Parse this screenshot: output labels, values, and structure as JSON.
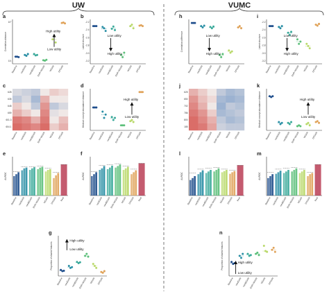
{
  "headers": {
    "left": "UW",
    "right": "VUMC"
  },
  "colors": {
    "Baseline": "#1f4e8c",
    "medGAN": "#2a8fa5",
    "medBGAN": "#3aa99a",
    "EMR-WGAN": "#5cbf7a",
    "WGAN": "#b9d96a",
    "DPGAN": "#e0a35a",
    "Real": "#b0243f"
  },
  "utility": {
    "low": "Low utility",
    "high": "High utility"
  },
  "panels": [
    {
      "id": "a",
      "label": "a",
      "type": "scatter",
      "ylabel": "Correlation distance",
      "yticks": [
        "10°",
        "10¹"
      ],
      "arrow": "up-high",
      "categories": [
        "Baseline",
        "medGAN",
        "medBGAN",
        "EMR-WGAN",
        "WGAN",
        "DPGAN"
      ],
      "points": [
        [
          0.16,
          0.16,
          0.15
        ],
        [
          0.2,
          0.18,
          0.22
        ],
        [
          0.22,
          0.19,
          0.2
        ],
        [
          0.08,
          0.07,
          0.09
        ],
        [
          0.55,
          0.62,
          0.48
        ],
        [
          0.92,
          0.93,
          0.91
        ]
      ],
      "means": [
        0.16,
        0.2,
        0.2,
        0.08,
        0.55,
        0.92
      ]
    },
    {
      "id": "b",
      "label": "b",
      "type": "scatter",
      "ylabel": "Latent structure",
      "yticks": [
        "-2.2",
        "-2.4",
        "-2.6",
        "-2.8",
        "-3.0",
        "-3.2"
      ],
      "arrow": "down-high",
      "categories": [
        "Baseline",
        "medGAN",
        "medBGAN",
        "EMR-WGAN",
        "WGAN",
        "DPGAN"
      ],
      "points": [
        [
          0.85,
          0.85,
          0.85
        ],
        [
          0.83,
          0.8,
          0.74
        ],
        [
          0.79,
          0.84,
          0.76
        ],
        [
          0.2,
          0.15,
          0.25
        ],
        [
          0.85,
          0.88,
          0.8
        ],
        [
          0.86,
          0.87,
          0.85
        ]
      ],
      "means": [
        0.85,
        0.79,
        0.8,
        0.2,
        0.84,
        0.86
      ]
    },
    {
      "id": "c",
      "label": "c",
      "type": "heatmap",
      "rows": [
        "628",
        "635",
        "648",
        "659",
        "601.3",
        "604.1"
      ],
      "cols": [
        "Baseline",
        "medGAN",
        "medBGAN",
        "EMR-WGAN",
        "WGAN",
        "DPGAN"
      ],
      "values": [
        [
          0.4,
          0.35,
          0.3,
          0.5,
          0.6,
          0.55
        ],
        [
          0.3,
          0.4,
          0.2,
          0.7,
          0.5,
          0.5
        ],
        [
          0.6,
          0.5,
          0.3,
          0.8,
          0.3,
          0.4
        ],
        [
          0.7,
          0.6,
          0.5,
          0.85,
          0.45,
          0.5
        ],
        [
          0.9,
          0.85,
          0.7,
          0.9,
          0.5,
          0.65
        ],
        [
          0.95,
          0.9,
          0.85,
          0.95,
          0.6,
          0.7
        ]
      ]
    },
    {
      "id": "d",
      "label": "d",
      "type": "scatter",
      "ylabel": "Medical concept abundance distance",
      "yticks": [],
      "arrow": "up-high",
      "categories": [
        "Baseline",
        "medGAN",
        "medBGAN",
        "EMR-WGAN",
        "WGAN",
        "DPGAN"
      ],
      "points": [
        [
          0.55,
          0.55,
          0.55
        ],
        [
          0.45,
          0.3,
          0.38
        ],
        [
          0.32,
          0.25,
          0.3
        ],
        [
          0.12,
          0.12,
          0.12
        ],
        [
          0.22,
          0.25,
          0.2
        ],
        [
          0.92,
          0.92,
          0.92
        ]
      ],
      "means": [
        0.55,
        0.38,
        0.29,
        0.12,
        0.22,
        0.92
      ]
    },
    {
      "id": "e",
      "label": "e",
      "type": "bar",
      "ylabel": "AUROC",
      "categories": [
        "Baseline",
        "medGAN",
        "medBGAN",
        "EMR-WGAN",
        "WGAN",
        "DPGAN",
        "Real"
      ],
      "values": [
        0.62,
        0.74,
        0.74,
        0.76,
        0.7,
        0.6,
        0.8
      ],
      "sub": [
        [
          0.5,
          0.55,
          0.6
        ],
        [
          0.65,
          0.7,
          0.72
        ],
        [
          0.66,
          0.7,
          0.73
        ],
        [
          0.68,
          0.72,
          0.74
        ],
        [
          0.62,
          0.66,
          0.68
        ],
        [
          0.45,
          0.52,
          0.58
        ],
        [
          0.8
        ]
      ]
    },
    {
      "id": "f",
      "label": "f",
      "type": "bar",
      "ylabel": "AUROC",
      "categories": [
        "Baseline",
        "medGAN",
        "medBGAN",
        "EMR-WGAN",
        "WGAN",
        "DPGAN",
        "Real"
      ],
      "values": [
        0.62,
        0.78,
        0.79,
        0.82,
        0.76,
        0.68,
        0.83
      ],
      "sub": [
        [
          0.5,
          0.55,
          0.6
        ],
        [
          0.66,
          0.7,
          0.76
        ],
        [
          0.68,
          0.72,
          0.77
        ],
        [
          0.72,
          0.76,
          0.8
        ],
        [
          0.66,
          0.7,
          0.74
        ],
        [
          0.55,
          0.6,
          0.65
        ],
        [
          0.83
        ]
      ]
    },
    {
      "id": "g",
      "label": "g",
      "type": "scatter",
      "ylabel": "Proportion of shared features",
      "yticks": [],
      "arrow": "up-high-top",
      "categories": [
        "Baseline",
        "medGAN",
        "medBGAN",
        "EMR-WGAN",
        "WGAN",
        "DPGAN"
      ],
      "points": [
        [
          0.15,
          0.12,
          0.13
        ],
        [
          0.25,
          0.2,
          0.22
        ],
        [
          0.35,
          0.32,
          0.34
        ],
        [
          0.5,
          0.55,
          0.48
        ],
        [
          0.3,
          0.25,
          0.2
        ],
        [
          0.1,
          0.08,
          0.12
        ]
      ],
      "means": [
        0.13,
        0.22,
        0.34,
        0.5,
        0.25,
        0.1
      ]
    },
    {
      "id": "h",
      "label": "h",
      "type": "scatter",
      "ylabel": "Correlation difference",
      "yticks": [],
      "arrow": "down-high",
      "categories": [
        "Baseline",
        "medGAN",
        "medBGAN",
        "EMR-WGAN",
        "WGAN",
        "DPGAN"
      ],
      "points": [
        [
          0.92,
          0.92,
          0.92
        ],
        [
          0.85,
          0.82,
          0.86
        ],
        [
          0.83,
          0.8,
          0.84
        ],
        [
          0.2,
          0.15,
          0.22
        ],
        [
          0.3,
          0.25,
          0.28
        ],
        [
          0.82,
          0.85,
          0.8
        ]
      ],
      "means": [
        0.92,
        0.84,
        0.82,
        0.19,
        0.28,
        0.82
      ]
    },
    {
      "id": "i",
      "label": "i",
      "type": "scatter",
      "ylabel": "Latent structure",
      "yticks": [
        "-2.2",
        "-2.4",
        "-2.6",
        "-2.8",
        "-3.0",
        "-3.2"
      ],
      "arrow": "down-high",
      "categories": [
        "Baseline",
        "medGAN",
        "medBGAN",
        "EMR-WGAN",
        "WGAN",
        "DPGAN"
      ],
      "points": [
        [
          0.85,
          0.85,
          0.85
        ],
        [
          0.83,
          0.8,
          0.85
        ],
        [
          0.7,
          0.65,
          0.72
        ],
        [
          0.55,
          0.45,
          0.5
        ],
        [
          0.45,
          0.4,
          0.35
        ],
        [
          0.88,
          0.86,
          0.9
        ]
      ],
      "means": [
        0.85,
        0.83,
        0.69,
        0.5,
        0.4,
        0.88
      ]
    },
    {
      "id": "j",
      "label": "j",
      "type": "heatmap",
      "rows": [
        "625",
        "650",
        "702",
        "786",
        "800",
        "185"
      ],
      "cols": [
        "Baseline",
        "medGAN",
        "medBGAN",
        "EMR-WGAN",
        "WGAN",
        "DPGAN"
      ],
      "values": [
        [
          0.7,
          0.6,
          0.5,
          0.3,
          0.2,
          0.25
        ],
        [
          0.8,
          0.65,
          0.55,
          0.2,
          0.15,
          0.2
        ],
        [
          0.85,
          0.7,
          0.5,
          0.15,
          0.3,
          0.25
        ],
        [
          0.9,
          0.8,
          0.6,
          0.2,
          0.25,
          0.3
        ],
        [
          0.95,
          0.85,
          0.7,
          0.3,
          0.2,
          0.25
        ],
        [
          0.95,
          0.9,
          0.75,
          0.35,
          0.3,
          0.3
        ]
      ]
    },
    {
      "id": "k",
      "label": "k",
      "type": "scatter",
      "ylabel": "Medical concept abundance distance",
      "yticks": [],
      "arrow": "up-high",
      "categories": [
        "Baseline",
        "medGAN",
        "medBGAN",
        "EMR-WGAN",
        "WGAN",
        "DPGAN"
      ],
      "points": [
        [
          0.82,
          0.8,
          0.82
        ],
        [
          0.2,
          0.15,
          0.18
        ],
        [
          0.18,
          0.15,
          0.2
        ],
        [
          0.1,
          0.12,
          0.1
        ],
        [
          0.15,
          0.18,
          0.12
        ],
        [
          0.2,
          0.22,
          0.18
        ]
      ],
      "means": [
        0.81,
        0.18,
        0.18,
        0.11,
        0.15,
        0.2
      ]
    },
    {
      "id": "l",
      "label": "l",
      "type": "bar",
      "ylabel": "AUROC",
      "categories": [
        "Baseline",
        "medGAN",
        "medBGAN",
        "EMR-WGAN",
        "WGAN",
        "DPGAN",
        "Real"
      ],
      "values": [
        0.58,
        0.68,
        0.7,
        0.72,
        0.68,
        0.65,
        0.78
      ],
      "sub": [
        [
          0.4,
          0.45,
          0.5
        ],
        [
          0.55,
          0.6,
          0.65
        ],
        [
          0.58,
          0.62,
          0.66
        ],
        [
          0.62,
          0.66,
          0.7
        ],
        [
          0.6,
          0.63,
          0.66
        ],
        [
          0.56,
          0.6,
          0.63
        ],
        [
          0.78
        ]
      ]
    },
    {
      "id": "m",
      "label": "m",
      "type": "bar",
      "ylabel": "AUROC",
      "categories": [
        "Baseline",
        "medGAN",
        "medBGAN",
        "EMR-WGAN",
        "WGAN",
        "DPGAN",
        "Real"
      ],
      "values": [
        0.6,
        0.68,
        0.7,
        0.72,
        0.68,
        0.6,
        0.8
      ],
      "sub": [
        [
          0.45,
          0.5,
          0.55
        ],
        [
          0.56,
          0.6,
          0.64
        ],
        [
          0.58,
          0.62,
          0.66
        ],
        [
          0.62,
          0.66,
          0.7
        ],
        [
          0.58,
          0.62,
          0.66
        ],
        [
          0.5,
          0.55,
          0.58
        ],
        [
          0.8
        ]
      ]
    },
    {
      "id": "n",
      "label": "n",
      "type": "scatter",
      "ylabel": "Proportion of shared features",
      "yticks": [],
      "arrow": "up-high-bottom",
      "categories": [
        "Baseline",
        "medGAN",
        "medBGAN",
        "EMR-WGAN",
        "WGAN",
        "DPGAN"
      ],
      "points": [
        [
          0.35,
          0.3,
          0.32
        ],
        [
          0.5,
          0.45,
          0.55
        ],
        [
          0.55,
          0.5,
          0.52
        ],
        [
          0.55,
          0.58,
          0.52
        ],
        [
          0.75,
          0.62,
          0.6
        ],
        [
          0.65,
          0.7,
          0.6
        ]
      ],
      "means": [
        0.32,
        0.5,
        0.53,
        0.55,
        0.62,
        0.65
      ]
    }
  ]
}
